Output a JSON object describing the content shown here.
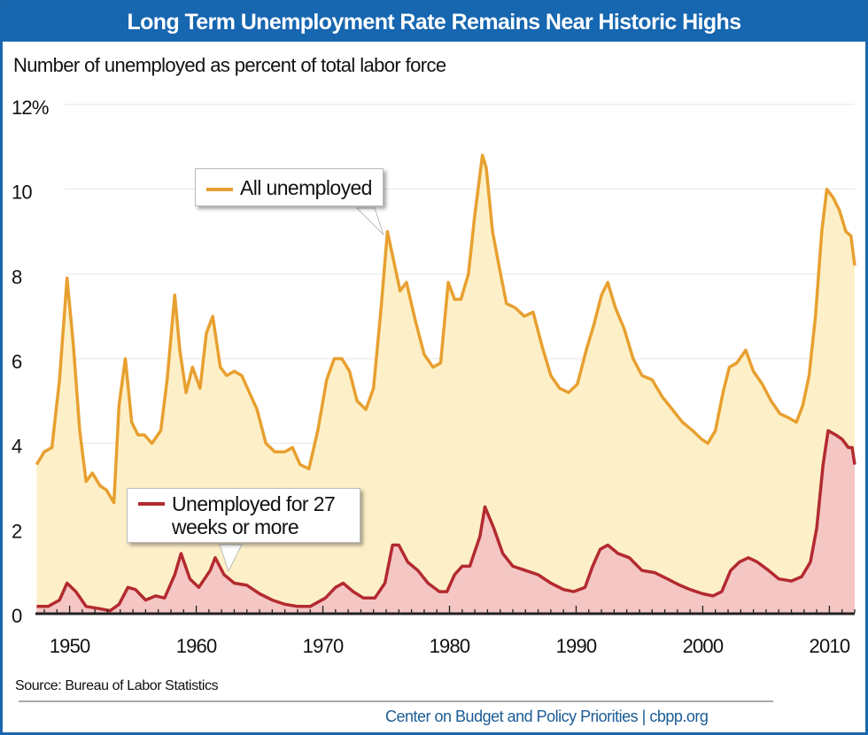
{
  "header": {
    "title": "Long Term Unemployment Rate Remains Near Historic Highs"
  },
  "footer": {
    "source": "Source: Bureau of Labor Statistics",
    "credit": "Center on Budget and Policy Priorities | cbpp.org"
  },
  "chart_data": {
    "type": "area",
    "title": "Long Term Unemployment Rate Remains Near Historic Highs",
    "ylabel": "Number of unemployed as percent of total labor force",
    "xlabel": "",
    "xlim": [
      1947.3,
      2012.0
    ],
    "ylim": [
      0,
      12
    ],
    "grid": true,
    "yticks": [
      0,
      2,
      4,
      6,
      8,
      10,
      12
    ],
    "ytick_labels": [
      "0",
      "2",
      "4",
      "6",
      "8",
      "10",
      "12%"
    ],
    "xticks": [
      1950,
      1960,
      1970,
      1980,
      1990,
      2000,
      2010
    ],
    "xtick_labels": [
      "1950",
      "1960",
      "1970",
      "1980",
      "1990",
      "2000",
      "2010"
    ],
    "series": [
      {
        "name": "All unemployed",
        "color": "#e8a030",
        "fill": "#fdf0c8",
        "x": [
          1947.4,
          1948,
          1948.6,
          1949.2,
          1949.8,
          1950.3,
          1950.8,
          1951.3,
          1951.8,
          1952.4,
          1952.9,
          1953.5,
          1953.9,
          1954.4,
          1954.9,
          1955.4,
          1955.9,
          1956.5,
          1957.2,
          1957.7,
          1958.3,
          1958.7,
          1959.2,
          1959.7,
          1960.3,
          1960.8,
          1961.3,
          1961.9,
          1962.4,
          1963,
          1963.6,
          1964.2,
          1964.8,
          1965.5,
          1966.2,
          1967,
          1967.6,
          1968.2,
          1968.9,
          1969.6,
          1970.3,
          1970.9,
          1971.5,
          1972.1,
          1972.7,
          1973.4,
          1974,
          1974.6,
          1975.1,
          1975.6,
          1976.1,
          1976.6,
          1977.3,
          1978,
          1978.7,
          1979.3,
          1979.9,
          1980.4,
          1980.9,
          1981.5,
          1982,
          1982.6,
          1982.9,
          1983.4,
          1983.9,
          1984.5,
          1985.2,
          1985.9,
          1986.6,
          1987.3,
          1988,
          1988.7,
          1989.4,
          1990.1,
          1990.8,
          1991.4,
          1992,
          1992.5,
          1993.1,
          1993.8,
          1994.5,
          1995.2,
          1996,
          1996.8,
          1997.6,
          1998.4,
          1999.2,
          1999.9,
          2000.4,
          2001,
          2001.6,
          2002.1,
          2002.7,
          2003.4,
          2004,
          2004.7,
          2005.4,
          2006.1,
          2006.8,
          2007.4,
          2007.9,
          2008.4,
          2008.9,
          2009.4,
          2009.8,
          2010.3,
          2010.8,
          2011.3,
          2011.7,
          2012.0
        ],
        "values": [
          3.5,
          3.8,
          3.9,
          5.5,
          7.9,
          6.3,
          4.3,
          3.1,
          3.3,
          3.0,
          2.9,
          2.6,
          4.9,
          6.0,
          4.5,
          4.2,
          4.2,
          4.0,
          4.3,
          5.5,
          7.5,
          6.2,
          5.2,
          5.8,
          5.3,
          6.6,
          7.0,
          5.8,
          5.6,
          5.7,
          5.6,
          5.2,
          4.8,
          4.0,
          3.8,
          3.8,
          3.9,
          3.5,
          3.4,
          4.3,
          5.5,
          6.0,
          6.0,
          5.7,
          5.0,
          4.8,
          5.3,
          7.2,
          9.0,
          8.3,
          7.6,
          7.8,
          6.9,
          6.1,
          5.8,
          5.9,
          7.8,
          7.4,
          7.4,
          8.0,
          9.4,
          10.8,
          10.5,
          9.0,
          8.2,
          7.3,
          7.2,
          7.0,
          7.1,
          6.3,
          5.6,
          5.3,
          5.2,
          5.4,
          6.2,
          6.8,
          7.5,
          7.8,
          7.2,
          6.7,
          6.0,
          5.6,
          5.5,
          5.1,
          4.8,
          4.5,
          4.3,
          4.1,
          4.0,
          4.3,
          5.2,
          5.8,
          5.9,
          6.2,
          5.7,
          5.4,
          5.0,
          4.7,
          4.6,
          4.5,
          4.9,
          5.6,
          7.0,
          9.0,
          10.0,
          9.8,
          9.5,
          9.0,
          8.9,
          8.2
        ]
      },
      {
        "name": "Unemployed for 27 weeks or more",
        "color": "#b32a30",
        "fill": "#f4c6c4",
        "x": [
          1947.4,
          1948.3,
          1949.2,
          1949.8,
          1950.5,
          1951.3,
          1952.3,
          1953.2,
          1953.9,
          1954.6,
          1955.2,
          1956,
          1956.8,
          1957.5,
          1958.3,
          1958.8,
          1959.5,
          1960.2,
          1961.1,
          1961.5,
          1962.2,
          1963,
          1964,
          1965,
          1966,
          1967,
          1968,
          1969,
          1970.2,
          1971,
          1971.6,
          1972.4,
          1973.2,
          1974.1,
          1974.9,
          1975.5,
          1976,
          1976.7,
          1977.5,
          1978.3,
          1979.2,
          1979.8,
          1980.4,
          1981,
          1981.6,
          1982.4,
          1982.8,
          1983.5,
          1984.2,
          1985,
          1986,
          1987,
          1988,
          1989,
          1989.8,
          1990.7,
          1991.3,
          1991.9,
          1992.5,
          1993.3,
          1994.2,
          1995.2,
          1996.2,
          1997.2,
          1998.2,
          1999,
          2000,
          2000.8,
          2001.5,
          2002.2,
          2002.9,
          2003.6,
          2004.3,
          2005.2,
          2006,
          2007,
          2007.8,
          2008.5,
          2009,
          2009.5,
          2009.9,
          2010.5,
          2011,
          2011.5,
          2011.8,
          2012.0
        ],
        "values": [
          0.15,
          0.15,
          0.3,
          0.7,
          0.5,
          0.15,
          0.1,
          0.05,
          0.2,
          0.6,
          0.55,
          0.3,
          0.4,
          0.35,
          0.9,
          1.4,
          0.8,
          0.6,
          1.0,
          1.3,
          0.9,
          0.7,
          0.65,
          0.45,
          0.3,
          0.2,
          0.15,
          0.15,
          0.35,
          0.6,
          0.7,
          0.5,
          0.35,
          0.35,
          0.7,
          1.6,
          1.6,
          1.2,
          1.0,
          0.7,
          0.5,
          0.5,
          0.9,
          1.1,
          1.1,
          1.8,
          2.5,
          2.0,
          1.4,
          1.1,
          1.0,
          0.9,
          0.7,
          0.55,
          0.5,
          0.6,
          1.1,
          1.5,
          1.6,
          1.4,
          1.3,
          1.0,
          0.95,
          0.8,
          0.65,
          0.55,
          0.45,
          0.4,
          0.5,
          1.0,
          1.2,
          1.3,
          1.2,
          1.0,
          0.8,
          0.75,
          0.85,
          1.2,
          2.0,
          3.5,
          4.3,
          4.2,
          4.1,
          3.9,
          3.9,
          3.5
        ]
      }
    ],
    "annotations": [
      "All unemployed",
      "Unemployed for 27 weeks or more"
    ]
  }
}
